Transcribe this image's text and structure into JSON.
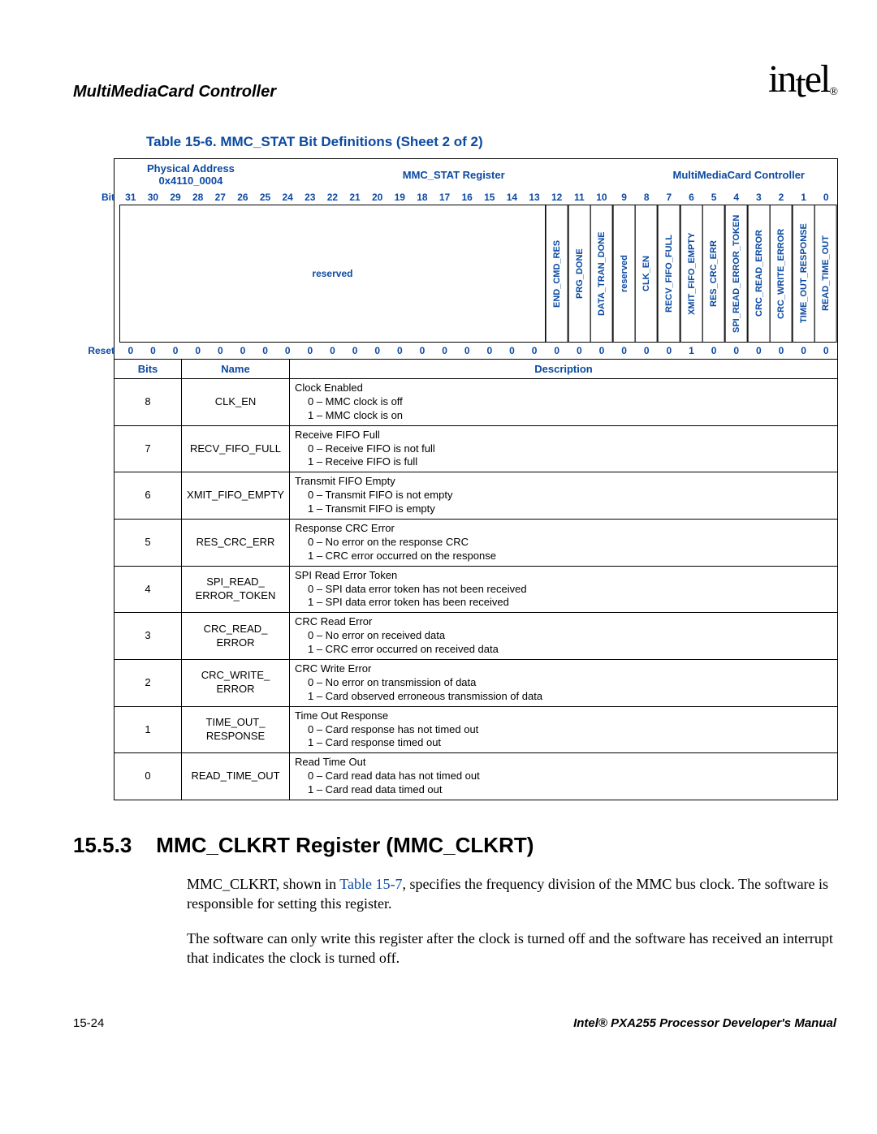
{
  "header": {
    "title": "MultiMediaCard Controller",
    "logo_text": "intel",
    "logo_sub": "®"
  },
  "table": {
    "title": "Table 15-6. MMC_STAT Bit Definitions (Sheet 2 of 2)",
    "phys_label": "Physical Address",
    "phys_addr": "0x4110_0004",
    "reg_name": "MMC_STAT Register",
    "module": "MultiMediaCard Controller",
    "bit_label": "Bit",
    "reset_label": "Reset",
    "bits": [
      "31",
      "30",
      "29",
      "28",
      "27",
      "26",
      "25",
      "24",
      "23",
      "22",
      "21",
      "20",
      "19",
      "18",
      "17",
      "16",
      "15",
      "14",
      "13",
      "12",
      "11",
      "10",
      "9",
      "8",
      "7",
      "6",
      "5",
      "4",
      "3",
      "2",
      "1",
      "0"
    ],
    "fields": {
      "reserved_big": "reserved",
      "f12": "END_CMD_RES",
      "f11": "PRG_DONE",
      "f10": "DATA_TRAN_DONE",
      "f9": "reserved",
      "f8": "CLK_EN",
      "f7": "RECV_FIFO_FULL",
      "f6": "XMIT_FIFO_EMPTY",
      "f5": "RES_CRC_ERR",
      "f4": "SPI_READ_ERROR_TOKEN",
      "f3": "CRC_READ_ERROR",
      "f2": "CRC_WRITE_ERROR",
      "f1": "TIME_OUT_RESPONSE",
      "f0": "READ_TIME_OUT"
    },
    "reset": [
      "0",
      "0",
      "0",
      "0",
      "0",
      "0",
      "0",
      "0",
      "0",
      "0",
      "0",
      "0",
      "0",
      "0",
      "0",
      "0",
      "0",
      "0",
      "0",
      "0",
      "0",
      "0",
      "0",
      "0",
      "0",
      "1",
      "0",
      "0",
      "0",
      "0",
      "0",
      "0"
    ],
    "desc_headers": {
      "bits": "Bits",
      "name": "Name",
      "desc": "Description"
    },
    "rows": [
      {
        "bit": "8",
        "name": "CLK_EN",
        "title": "Clock Enabled",
        "l0": "0 –   MMC clock is off",
        "l1": "1 –   MMC clock is on"
      },
      {
        "bit": "7",
        "name": "RECV_FIFO_FULL",
        "title": "Receive FIFO Full",
        "l0": "0 –   Receive FIFO is not full",
        "l1": "1 –   Receive FIFO is full"
      },
      {
        "bit": "6",
        "name": "XMIT_FIFO_EMPTY",
        "title": "Transmit FIFO Empty",
        "l0": "0 –   Transmit FIFO is not empty",
        "l1": "1 –   Transmit FIFO is empty"
      },
      {
        "bit": "5",
        "name": "RES_CRC_ERR",
        "title": "Response CRC Error",
        "l0": "0 –   No error on the response CRC",
        "l1": "1 –   CRC error occurred on the response"
      },
      {
        "bit": "4",
        "name": "SPI_READ_ERROR_TOKEN",
        "title": "SPI Read Error Token",
        "l0": "0 –   SPI data error token has not been received",
        "l1": "1 –   SPI data error token has been received"
      },
      {
        "bit": "3",
        "name": "CRC_READ_ERROR",
        "title": "CRC Read Error",
        "l0": "0 –   No error on received data",
        "l1": "1 –   CRC error occurred on received data"
      },
      {
        "bit": "2",
        "name": "CRC_WRITE_ERROR",
        "title": "CRC Write Error",
        "l0": "0 –   No error on transmission of data",
        "l1": "1 –   Card observed erroneous transmission of data"
      },
      {
        "bit": "1",
        "name": "TIME_OUT_RESPONSE",
        "title": "Time Out Response",
        "l0": "0 –   Card response has not timed out",
        "l1": "1 –   Card response timed out"
      },
      {
        "bit": "0",
        "name": "READ_TIME_OUT",
        "title": "Read Time Out",
        "l0": "0 –   Card read data has not timed out",
        "l1": "1 –   Card read data timed out"
      }
    ]
  },
  "section": {
    "num": "15.5.3",
    "title": "MMC_CLKRT Register (MMC_CLKRT)"
  },
  "paragraphs": {
    "p1a": "MMC_CLKRT, shown in ",
    "p1x": "Table 15-7",
    "p1b": ", specifies the frequency division of the MMC bus clock. The software is responsible for setting this register.",
    "p2": "The software can only write this register after the clock is turned off and the software has received an interrupt that indicates the clock is turned off."
  },
  "footer": {
    "left": "15-24",
    "right": "Intel® PXA255 Processor Developer's Manual"
  },
  "colors": {
    "accent": "#0b4aa2"
  }
}
